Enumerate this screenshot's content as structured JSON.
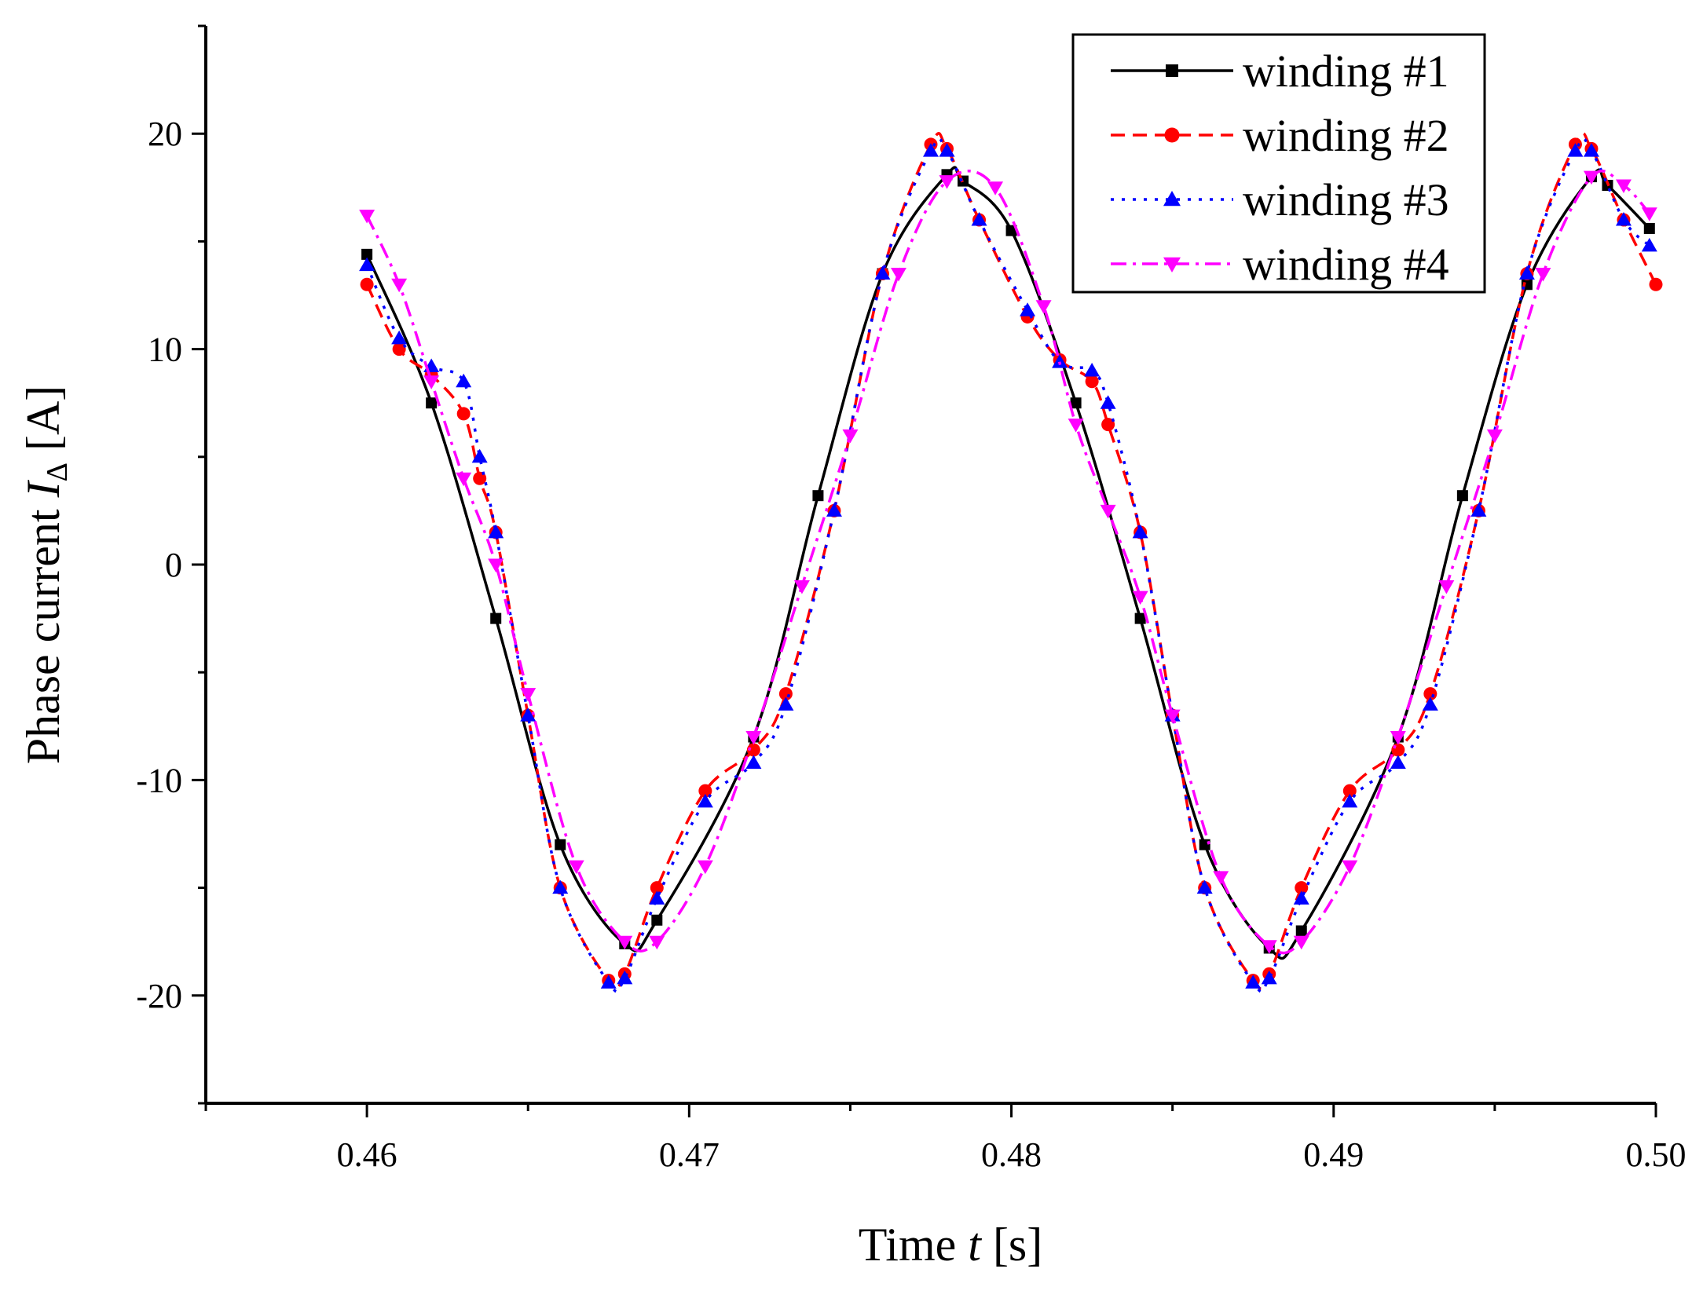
{
  "chart_data": {
    "type": "line",
    "title": "",
    "xlabel": "Time",
    "xlabel_var": "t",
    "xlabel_unit": "[s]",
    "ylabel": "Phase current",
    "ylabel_var": "I",
    "ylabel_sub": "Δ",
    "ylabel_unit": "[A]",
    "xlim": [
      0.455,
      0.5
    ],
    "ylim": [
      -25,
      25
    ],
    "xticks": [
      0.46,
      0.47,
      0.48,
      0.49,
      0.5
    ],
    "xtick_labels": [
      "0.46",
      "0.47",
      "0.48",
      "0.49",
      "0.50"
    ],
    "yticks": [
      -20,
      -10,
      0,
      10,
      20
    ],
    "ytick_labels": [
      "-20",
      "-10",
      "0",
      "10",
      "20"
    ],
    "grid": false,
    "legend_position": "top-right",
    "series": [
      {
        "name": "winding #1",
        "color": "#000000",
        "marker": "square",
        "dash": "solid",
        "x": [
          0.46,
          0.462,
          0.464,
          0.466,
          0.468,
          0.469,
          0.472,
          0.474,
          0.476,
          0.478,
          0.4785,
          0.48,
          0.482,
          0.484,
          0.486,
          0.488,
          0.489,
          0.492,
          0.494,
          0.496,
          0.498,
          0.4985,
          0.4998
        ],
        "values": [
          14.4,
          7.5,
          -2.5,
          -13.0,
          -17.6,
          -16.5,
          -8.0,
          3.2,
          13.5,
          18.1,
          17.8,
          15.5,
          7.5,
          -2.5,
          -13.0,
          -17.8,
          -17.0,
          -8.0,
          3.2,
          13.0,
          18.0,
          17.6,
          15.6
        ]
      },
      {
        "name": "winding #2",
        "color": "#ff0000",
        "marker": "circle",
        "dash": "dashed",
        "x": [
          0.46,
          0.461,
          0.462,
          0.463,
          0.4635,
          0.464,
          0.465,
          0.466,
          0.4675,
          0.468,
          0.469,
          0.4705,
          0.472,
          0.473,
          0.4745,
          0.476,
          0.4775,
          0.478,
          0.479,
          0.4805,
          0.4815,
          0.4825,
          0.483,
          0.484,
          0.485,
          0.486,
          0.4875,
          0.488,
          0.489,
          0.4905,
          0.492,
          0.493,
          0.4945,
          0.496,
          0.4975,
          0.498,
          0.499,
          0.5
        ],
        "values": [
          13.0,
          10.0,
          8.8,
          7.0,
          4.0,
          1.5,
          -7.0,
          -15.0,
          -19.3,
          -19.0,
          -15.0,
          -10.5,
          -8.6,
          -6.0,
          2.5,
          13.5,
          19.5,
          19.3,
          16.0,
          11.5,
          9.5,
          8.5,
          6.5,
          1.5,
          -7.0,
          -15.0,
          -19.3,
          -19.0,
          -15.0,
          -10.5,
          -8.6,
          -6.0,
          2.5,
          13.5,
          19.5,
          19.3,
          16.0,
          13.0
        ]
      },
      {
        "name": "winding #3",
        "color": "#0000ff",
        "marker": "triangle-up",
        "dash": "dotted",
        "x": [
          0.46,
          0.461,
          0.462,
          0.463,
          0.4635,
          0.464,
          0.465,
          0.466,
          0.4675,
          0.468,
          0.469,
          0.4705,
          0.472,
          0.473,
          0.4745,
          0.476,
          0.4775,
          0.478,
          0.479,
          0.4805,
          0.4815,
          0.4825,
          0.483,
          0.484,
          0.485,
          0.486,
          0.4875,
          0.488,
          0.489,
          0.4905,
          0.492,
          0.493,
          0.4945,
          0.496,
          0.4975,
          0.498,
          0.499,
          0.4998
        ],
        "values": [
          13.9,
          10.5,
          9.2,
          8.5,
          5.0,
          1.5,
          -7.0,
          -15.0,
          -19.4,
          -19.2,
          -15.5,
          -11.0,
          -9.2,
          -6.5,
          2.5,
          13.5,
          19.2,
          19.2,
          16.0,
          11.8,
          9.4,
          9.0,
          7.5,
          1.5,
          -7.0,
          -15.0,
          -19.4,
          -19.2,
          -15.5,
          -11.0,
          -9.2,
          -6.5,
          2.5,
          13.5,
          19.2,
          19.2,
          16.0,
          14.8
        ]
      },
      {
        "name": "winding #4",
        "color": "#ff00ff",
        "marker": "triangle-down",
        "dash": "dashdot",
        "x": [
          0.46,
          0.461,
          0.462,
          0.463,
          0.464,
          0.465,
          0.4665,
          0.468,
          0.469,
          0.4705,
          0.472,
          0.4735,
          0.475,
          0.4765,
          0.478,
          0.4795,
          0.481,
          0.482,
          0.483,
          0.484,
          0.485,
          0.4865,
          0.488,
          0.489,
          0.4905,
          0.492,
          0.4935,
          0.495,
          0.4965,
          0.498,
          0.499,
          0.4998
        ],
        "values": [
          16.2,
          13.0,
          8.5,
          4.0,
          0.0,
          -6.0,
          -14.0,
          -17.5,
          -17.5,
          -14.0,
          -8.0,
          -1.0,
          6.0,
          13.5,
          17.8,
          17.5,
          12.0,
          6.5,
          2.5,
          -1.5,
          -7.0,
          -14.5,
          -17.7,
          -17.5,
          -14.0,
          -8.0,
          -1.0,
          6.0,
          13.5,
          18.0,
          17.6,
          16.3
        ]
      }
    ]
  }
}
